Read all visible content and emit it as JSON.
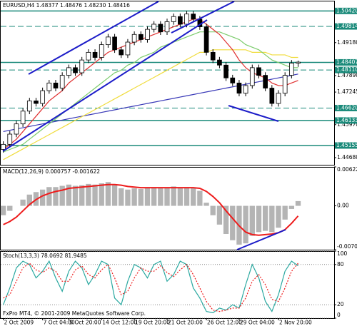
{
  "chart_data": [
    {
      "type": "candlestick",
      "title": "EURUSD,H4 1.48377 1.48476 1.48230 1.48416",
      "open": [
        1.45,
        1.452,
        1.456,
        1.46,
        1.465,
        1.469,
        1.468,
        1.473,
        1.476,
        1.474,
        1.479,
        1.482,
        1.48,
        1.485,
        1.488,
        1.486,
        1.491,
        1.494,
        1.489,
        1.487,
        1.492,
        1.495,
        1.493,
        1.497,
        1.499,
        1.496,
        1.5,
        1.502,
        1.499,
        1.503,
        1.501,
        1.498,
        1.488,
        1.485,
        1.483,
        1.478,
        1.476,
        1.472,
        1.475,
        1.482,
        1.479,
        1.474,
        1.468,
        1.472,
        1.479,
        1.48377
      ],
      "high": [
        1.4532,
        1.4572,
        1.4612,
        1.4662,
        1.4702,
        1.4702,
        1.4742,
        1.4772,
        1.4772,
        1.4802,
        1.4832,
        1.4832,
        1.4862,
        1.4892,
        1.4892,
        1.4922,
        1.4952,
        1.4952,
        1.4902,
        1.4932,
        1.4962,
        1.4962,
        1.4982,
        1.5002,
        1.5002,
        1.5012,
        1.5032,
        1.5032,
        1.5042,
        1.5042,
        1.5022,
        1.4992,
        1.4892,
        1.4862,
        1.4842,
        1.4792,
        1.4772,
        1.4762,
        1.4832,
        1.4832,
        1.4802,
        1.4752,
        1.4732,
        1.4802,
        1.485,
        1.48476
      ],
      "low": [
        1.4488,
        1.4508,
        1.4548,
        1.4588,
        1.4638,
        1.4668,
        1.4668,
        1.4718,
        1.4728,
        1.4728,
        1.4778,
        1.4788,
        1.4788,
        1.4838,
        1.4848,
        1.4848,
        1.4898,
        1.4878,
        1.4858,
        1.4858,
        1.4908,
        1.4918,
        1.4918,
        1.4958,
        1.4948,
        1.4948,
        1.4988,
        1.4978,
        1.4978,
        1.4998,
        1.4968,
        1.4868,
        1.4838,
        1.4818,
        1.4768,
        1.4748,
        1.4708,
        1.4708,
        1.4738,
        1.4778,
        1.4728,
        1.4668,
        1.4668,
        1.4708,
        1.4778,
        1.4823
      ],
      "close": [
        1.452,
        1.456,
        1.46,
        1.465,
        1.469,
        1.468,
        1.473,
        1.476,
        1.474,
        1.479,
        1.482,
        1.48,
        1.485,
        1.488,
        1.486,
        1.491,
        1.494,
        1.489,
        1.487,
        1.492,
        1.495,
        1.493,
        1.497,
        1.499,
        1.496,
        1.5,
        1.502,
        1.499,
        1.503,
        1.501,
        1.498,
        1.488,
        1.485,
        1.483,
        1.478,
        1.476,
        1.472,
        1.475,
        1.482,
        1.479,
        1.474,
        1.468,
        1.472,
        1.479,
        1.4838,
        1.48416
      ],
      "up_color": "#ffffff",
      "down_color": "#000000",
      "series": [
        {
          "color": "#3a3ab8",
          "values": [
            1.457,
            1.4575,
            1.458,
            1.4585,
            1.459,
            1.4595,
            1.46,
            1.4605,
            1.461,
            1.4615,
            1.462,
            1.4625,
            1.463,
            1.4635,
            1.464,
            1.4645,
            1.465,
            1.4655,
            1.466,
            1.4665,
            1.467,
            1.4675,
            1.468,
            1.4685,
            1.469,
            1.4695,
            1.47,
            1.4705,
            1.471,
            1.4715,
            1.472,
            1.4725,
            1.473,
            1.4735,
            1.474,
            1.4745,
            1.475,
            1.4755,
            1.476,
            1.4765,
            1.477,
            1.4775,
            1.478,
            1.4785,
            1.479,
            1.4795
          ]
        },
        {
          "color": "#f0dc3c",
          "values": [
            1.446,
            1.4474,
            1.4488,
            1.4502,
            1.4516,
            1.453,
            1.4544,
            1.4558,
            1.4572,
            1.4586,
            1.46,
            1.4614,
            1.4628,
            1.4642,
            1.4656,
            1.467,
            1.4684,
            1.4698,
            1.4712,
            1.4726,
            1.474,
            1.4754,
            1.4768,
            1.4782,
            1.4796,
            1.481,
            1.4824,
            1.4838,
            1.4852,
            1.4866,
            1.488,
            1.488,
            1.489,
            1.489,
            1.489,
            1.489,
            1.489,
            1.489,
            1.488,
            1.488,
            1.488,
            1.487,
            1.487,
            1.487,
            1.486,
            1.486
          ]
        },
        {
          "color": "#7ccc6c",
          "values": [
            1.449,
            1.45,
            1.451,
            1.452,
            1.454,
            1.456,
            1.458,
            1.46,
            1.462,
            1.464,
            1.466,
            1.468,
            1.47,
            1.472,
            1.474,
            1.476,
            1.478,
            1.48,
            1.481,
            1.483,
            1.484,
            1.486,
            1.487,
            1.488,
            1.49,
            1.491,
            1.492,
            1.493,
            1.494,
            1.495,
            1.496,
            1.496,
            1.496,
            1.496,
            1.495,
            1.494,
            1.493,
            1.491,
            1.49,
            1.489,
            1.487,
            1.485,
            1.484,
            1.483,
            1.482,
            1.482
          ]
        },
        {
          "color": "#e03030",
          "values": [
            1.45,
            1.452,
            1.454,
            1.457,
            1.46,
            1.463,
            1.466,
            1.469,
            1.471,
            1.473,
            1.476,
            1.478,
            1.48,
            1.482,
            1.484,
            1.486,
            1.488,
            1.489,
            1.49,
            1.491,
            1.492,
            1.493,
            1.494,
            1.495,
            1.496,
            1.497,
            1.498,
            1.499,
            1.5,
            1.501,
            1.501,
            1.499,
            1.497,
            1.495,
            1.492,
            1.489,
            1.485,
            1.482,
            1.48,
            1.479,
            1.478,
            1.476,
            1.475,
            1.475,
            1.476,
            1.477
          ]
        }
      ],
      "ylim": [
        1.444,
        1.5082
      ],
      "yticks": [
        {
          "value": 1.4468,
          "label": "1.44680"
        },
        {
          "value": 1.4597,
          "label": "1.45970"
        },
        {
          "value": 1.47245,
          "label": "1.47245"
        },
        {
          "value": 1.4789,
          "label": "1.47890"
        },
        {
          "value": 1.4918,
          "label": "1.49180"
        }
      ],
      "levels": [
        {
          "value": 1.5042,
          "label": "1.50420",
          "style": "solid"
        },
        {
          "value": 1.49814,
          "label": "1.49814",
          "style": "dashed"
        },
        {
          "value": 1.48407,
          "label": "1.48407",
          "style": "solid"
        },
        {
          "value": 1.4811,
          "label": "1.48110",
          "style": "dashed"
        },
        {
          "value": 1.4662,
          "label": "1.46620",
          "style": "dashed"
        },
        {
          "value": 1.46133,
          "label": "1.46133",
          "style": "solid"
        },
        {
          "value": 1.45155,
          "label": "1.45155",
          "style": "solid"
        }
      ],
      "level_color": "#1a8a7a",
      "grid": false
    },
    {
      "type": "bar",
      "title": "MACD(12,26,9) 0.000757 -0.001622",
      "values": [
        -0.0015,
        -0.0008,
        0.0,
        0.001,
        0.0018,
        0.0022,
        0.0026,
        0.003,
        0.003,
        0.0032,
        0.0034,
        0.0032,
        0.0033,
        0.0035,
        0.0034,
        0.0036,
        0.0038,
        0.0034,
        0.0028,
        0.0026,
        0.0028,
        0.0027,
        0.0028,
        0.003,
        0.0028,
        0.0029,
        0.0031,
        0.0029,
        0.003,
        0.0029,
        0.0024,
        0.0005,
        -0.0015,
        -0.003,
        -0.0045,
        -0.0055,
        -0.0062,
        -0.006,
        -0.0048,
        -0.0042,
        -0.004,
        -0.0042,
        -0.0035,
        -0.0022,
        -0.0005,
        0.000757
      ],
      "color": "#b4b4b4",
      "series": [
        {
          "color": "#ee1c1c",
          "values": [
            -0.003,
            -0.0025,
            -0.0018,
            -0.0008,
            0.0002,
            0.001,
            0.0016,
            0.002,
            0.0023,
            0.0025,
            0.0028,
            0.0029,
            0.003,
            0.0031,
            0.0032,
            0.0033,
            0.0034,
            0.0034,
            0.0033,
            0.0031,
            0.003,
            0.0029,
            0.0029,
            0.0029,
            0.0029,
            0.0029,
            0.0029,
            0.0029,
            0.0029,
            0.0029,
            0.0028,
            0.0023,
            0.0015,
            0.0005,
            -0.0008,
            -0.002,
            -0.0032,
            -0.0042,
            -0.0046,
            -0.0047,
            -0.0046,
            -0.0045,
            -0.0043,
            -0.0038,
            -0.0028,
            -0.001622
          ]
        }
      ],
      "ylim": [
        -0.00701,
        0.006223
      ],
      "yticks": [
        -0.00701,
        {
          "value": 0,
          "label": "0.00"
        },
        0.006223
      ],
      "grid": false
    },
    {
      "type": "line",
      "title": "Stoch(13,3,3) 78.0692 81.9485",
      "categories": [
        "2 Oct 2009",
        null,
        null,
        null,
        null,
        null,
        "7 Oct 04:00",
        null,
        null,
        null,
        "9 Oct 20:00",
        null,
        null,
        null,
        null,
        "14 Oct 12:00",
        null,
        null,
        null,
        null,
        "19 Oct 20:00",
        null,
        null,
        null,
        null,
        "21 Oct 20:00",
        null,
        null,
        null,
        null,
        null,
        "26 Oct 12:00",
        null,
        null,
        null,
        null,
        "29 Oct 04:00",
        null,
        null,
        null,
        null,
        null,
        "2 Nov 20:00",
        null,
        null,
        null
      ],
      "series": [
        {
          "color": "#2aa8a0",
          "dash": false,
          "values": [
            20,
            45,
            75,
            85,
            80,
            60,
            70,
            85,
            60,
            40,
            70,
            85,
            75,
            50,
            65,
            85,
            80,
            30,
            20,
            55,
            80,
            75,
            60,
            80,
            85,
            55,
            65,
            85,
            80,
            45,
            30,
            10,
            8,
            15,
            12,
            20,
            15,
            50,
            80,
            60,
            25,
            10,
            35,
            70,
            85,
            78.0692
          ]
        },
        {
          "color": "#ee1c1c",
          "dash": true,
          "values": [
            30,
            35,
            55,
            75,
            82,
            72,
            68,
            75,
            70,
            55,
            55,
            72,
            78,
            65,
            60,
            72,
            80,
            60,
            35,
            40,
            60,
            75,
            70,
            70,
            78,
            68,
            62,
            72,
            80,
            65,
            45,
            25,
            12,
            10,
            12,
            15,
            15,
            30,
            55,
            65,
            50,
            28,
            25,
            45,
            70,
            81.9485
          ]
        }
      ],
      "ylim": [
        0,
        100
      ],
      "yticks": [
        0,
        20,
        80,
        100
      ],
      "grid": true,
      "annotation": "FxPro MT4, © 2001-2009 MetaQuotes Software Corp."
    }
  ]
}
